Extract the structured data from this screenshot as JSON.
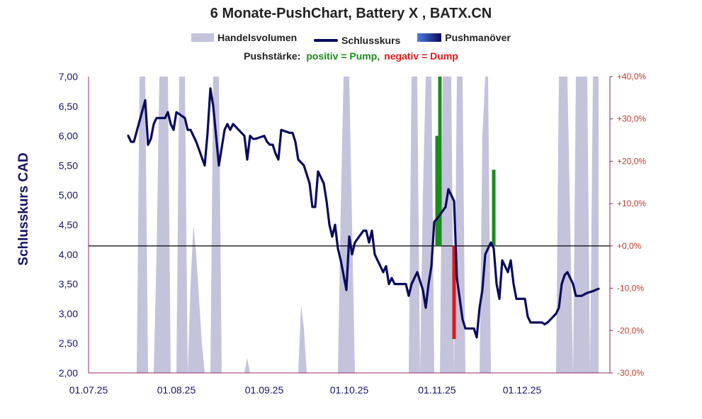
{
  "title": "6 Monate-PushChart, Battery X , BATX.CN",
  "legend": {
    "volume": "Handelsvolumen",
    "close": "Schlusskurs",
    "push": "Pushmanöver"
  },
  "push_legend": {
    "label": "Pushstärke:",
    "positive": "positiv = Pump,",
    "negative": "negativ = Dump"
  },
  "colors": {
    "volume": "#c3c3dc",
    "close": "#0a0a5e",
    "pump": "#1b8c1b",
    "dump": "#e01818",
    "baseline": "#000000",
    "left_axis_text": "#141466",
    "right_axis_text": "#c0392b",
    "right_axis_line": "#8b2252"
  },
  "chart_data": {
    "type": "line",
    "title": "6 Monate-PushChart, Battery X , BATX.CN",
    "ylabel": "Schlusskurs CAD",
    "xlabel": "",
    "x_ticks": [
      "01.07.25",
      "01.08.25",
      "01.09.25",
      "01.10.25",
      "01.11.25",
      "01.12.25"
    ],
    "ylim": [
      2.0,
      7.0
    ],
    "y_ticks": [
      "2,00",
      "2,50",
      "3,00",
      "3,50",
      "4,00",
      "4,50",
      "5,00",
      "5,50",
      "6,00",
      "6,50",
      "7,00"
    ],
    "y2lim": [
      -30,
      40
    ],
    "y2_ticks": [
      "-30,0%",
      "-20,0%",
      "-10,0%",
      "+0,0%",
      "+10,0%",
      "+20,0%",
      "+30,0%",
      "+40,0%"
    ],
    "baseline_pct": 0,
    "series": [
      {
        "name": "Schlusskurs",
        "points": [
          [
            "2025-07-15",
            6.0
          ],
          [
            "2025-07-16",
            5.9
          ],
          [
            "2025-07-17",
            5.9
          ],
          [
            "2025-07-21",
            6.6
          ],
          [
            "2025-07-22",
            5.85
          ],
          [
            "2025-07-23",
            5.95
          ],
          [
            "2025-07-24",
            6.2
          ],
          [
            "2025-07-25",
            6.3
          ],
          [
            "2025-07-28",
            6.3
          ],
          [
            "2025-07-29",
            6.4
          ],
          [
            "2025-07-30",
            6.2
          ],
          [
            "2025-07-31",
            6.1
          ],
          [
            "2025-08-01",
            6.4
          ],
          [
            "2025-08-04",
            6.3
          ],
          [
            "2025-08-05",
            6.1
          ],
          [
            "2025-08-06",
            6.1
          ],
          [
            "2025-08-08",
            5.9
          ],
          [
            "2025-08-11",
            5.5
          ],
          [
            "2025-08-12",
            6.05
          ],
          [
            "2025-08-13",
            6.8
          ],
          [
            "2025-08-14",
            6.5
          ],
          [
            "2025-08-15",
            6.0
          ],
          [
            "2025-08-16",
            5.5
          ],
          [
            "2025-08-18",
            6.1
          ],
          [
            "2025-08-19",
            6.2
          ],
          [
            "2025-08-20",
            6.1
          ],
          [
            "2025-08-21",
            6.2
          ],
          [
            "2025-08-25",
            6.0
          ],
          [
            "2025-08-26",
            5.6
          ],
          [
            "2025-08-27",
            6.0
          ],
          [
            "2025-08-28",
            5.95
          ],
          [
            "2025-08-29",
            5.95
          ],
          [
            "2025-09-01",
            6.0
          ],
          [
            "2025-09-02",
            5.9
          ],
          [
            "2025-09-03",
            5.85
          ],
          [
            "2025-09-04",
            5.85
          ],
          [
            "2025-09-05",
            5.7
          ],
          [
            "2025-09-06",
            5.6
          ],
          [
            "2025-09-07",
            6.1
          ],
          [
            "2025-09-10",
            6.05
          ],
          [
            "2025-09-11",
            6.05
          ],
          [
            "2025-09-12",
            5.9
          ],
          [
            "2025-09-13",
            5.6
          ],
          [
            "2025-09-15",
            5.5
          ],
          [
            "2025-09-17",
            5.2
          ],
          [
            "2025-09-18",
            4.8
          ],
          [
            "2025-09-19",
            4.8
          ],
          [
            "2025-09-20",
            5.4
          ],
          [
            "2025-09-22",
            5.2
          ],
          [
            "2025-09-23",
            4.9
          ],
          [
            "2025-09-24",
            4.5
          ],
          [
            "2025-09-25",
            4.3
          ],
          [
            "2025-09-26",
            4.5
          ],
          [
            "2025-09-27",
            4.1
          ],
          [
            "2025-09-28",
            3.9
          ],
          [
            "2025-09-30",
            3.4
          ],
          [
            "2025-10-01",
            4.3
          ],
          [
            "2025-10-02",
            4.0
          ],
          [
            "2025-10-03",
            4.2
          ],
          [
            "2025-10-06",
            4.4
          ],
          [
            "2025-10-07",
            4.4
          ],
          [
            "2025-10-08",
            4.2
          ],
          [
            "2025-10-09",
            4.4
          ],
          [
            "2025-10-10",
            4.0
          ],
          [
            "2025-10-13",
            3.7
          ],
          [
            "2025-10-14",
            3.8
          ],
          [
            "2025-10-15",
            3.5
          ],
          [
            "2025-10-16",
            3.6
          ],
          [
            "2025-10-17",
            3.5
          ],
          [
            "2025-10-21",
            3.5
          ],
          [
            "2025-10-22",
            3.3
          ],
          [
            "2025-10-23",
            3.5
          ],
          [
            "2025-10-24",
            3.6
          ],
          [
            "2025-10-25",
            3.7
          ],
          [
            "2025-10-27",
            3.4
          ],
          [
            "2025-10-28",
            3.1
          ],
          [
            "2025-10-29",
            3.5
          ],
          [
            "2025-10-30",
            3.8
          ],
          [
            "2025-10-31",
            4.55
          ],
          [
            "2025-11-01",
            4.6
          ],
          [
            "2025-11-04",
            4.8
          ],
          [
            "2025-11-05",
            5.1
          ],
          [
            "2025-11-06",
            5.0
          ],
          [
            "2025-11-07",
            4.9
          ],
          [
            "2025-11-08",
            3.6
          ],
          [
            "2025-11-10",
            2.9
          ],
          [
            "2025-11-11",
            2.75
          ],
          [
            "2025-11-12",
            2.75
          ],
          [
            "2025-11-14",
            2.75
          ],
          [
            "2025-11-15",
            2.6
          ],
          [
            "2025-11-16",
            3.1
          ],
          [
            "2025-11-17",
            3.4
          ],
          [
            "2025-11-18",
            4.0
          ],
          [
            "2025-11-20",
            4.2
          ],
          [
            "2025-11-21",
            4.1
          ],
          [
            "2025-11-22",
            3.5
          ],
          [
            "2025-11-23",
            3.25
          ],
          [
            "2025-11-24",
            3.9
          ],
          [
            "2025-11-26",
            3.7
          ],
          [
            "2025-11-27",
            3.9
          ],
          [
            "2025-11-28",
            3.5
          ],
          [
            "2025-11-29",
            3.25
          ],
          [
            "2025-12-01",
            3.25
          ],
          [
            "2025-12-02",
            3.25
          ],
          [
            "2025-12-03",
            2.95
          ],
          [
            "2025-12-04",
            2.85
          ],
          [
            "2025-12-05",
            2.85
          ],
          [
            "2025-12-08",
            2.85
          ],
          [
            "2025-12-09",
            2.82
          ],
          [
            "2025-12-10",
            2.85
          ],
          [
            "2025-12-11",
            2.9
          ],
          [
            "2025-12-12",
            2.95
          ],
          [
            "2025-12-13",
            3.0
          ],
          [
            "2025-12-14",
            3.1
          ],
          [
            "2025-12-15",
            3.5
          ],
          [
            "2025-12-16",
            3.65
          ],
          [
            "2025-12-17",
            3.7
          ],
          [
            "2025-12-19",
            3.5
          ],
          [
            "2025-12-20",
            3.3
          ],
          [
            "2025-12-22",
            3.3
          ],
          [
            "2025-12-24",
            3.35
          ],
          [
            "2025-12-26",
            3.38
          ],
          [
            "2025-12-28",
            3.42
          ]
        ]
      }
    ],
    "volume_pct_of_axis": [
      [
        "2025-07-18",
        0
      ],
      [
        "2025-07-19",
        100
      ],
      [
        "2025-07-21",
        100
      ],
      [
        "2025-07-22",
        0
      ],
      [
        "2025-07-24",
        0
      ],
      [
        "2025-07-25",
        40
      ],
      [
        "2025-07-26",
        100
      ],
      [
        "2025-07-29",
        100
      ],
      [
        "2025-07-30",
        0
      ],
      [
        "2025-08-01",
        0
      ],
      [
        "2025-08-02",
        100
      ],
      [
        "2025-08-04",
        100
      ],
      [
        "2025-08-05",
        0
      ],
      [
        "2025-08-06",
        30
      ],
      [
        "2025-08-07",
        50
      ],
      [
        "2025-08-08",
        40
      ],
      [
        "2025-08-10",
        10
      ],
      [
        "2025-08-11",
        0
      ],
      [
        "2025-08-13",
        0
      ],
      [
        "2025-08-14",
        100
      ],
      [
        "2025-08-16",
        100
      ],
      [
        "2025-08-17",
        0
      ],
      [
        "2025-08-25",
        0
      ],
      [
        "2025-08-26",
        5
      ],
      [
        "2025-08-27",
        0
      ],
      [
        "2025-09-13",
        0
      ],
      [
        "2025-09-14",
        23
      ],
      [
        "2025-09-15",
        15
      ],
      [
        "2025-09-16",
        0
      ],
      [
        "2025-09-27",
        0
      ],
      [
        "2025-09-28",
        55
      ],
      [
        "2025-09-29",
        100
      ],
      [
        "2025-10-01",
        100
      ],
      [
        "2025-10-03",
        0
      ],
      [
        "2025-10-22",
        0
      ],
      [
        "2025-10-23",
        100
      ],
      [
        "2025-10-25",
        100
      ],
      [
        "2025-10-26",
        0
      ],
      [
        "2025-10-27",
        60
      ],
      [
        "2025-10-28",
        100
      ],
      [
        "2025-10-30",
        100
      ],
      [
        "2025-10-31",
        0
      ],
      [
        "2025-11-02",
        0
      ],
      [
        "2025-11-03",
        100
      ],
      [
        "2025-11-06",
        100
      ],
      [
        "2025-11-07",
        0
      ],
      [
        "2025-11-08",
        100
      ],
      [
        "2025-11-10",
        100
      ],
      [
        "2025-11-11",
        0
      ],
      [
        "2025-11-16",
        0
      ],
      [
        "2025-11-17",
        80
      ],
      [
        "2025-11-18",
        100
      ],
      [
        "2025-11-19",
        100
      ],
      [
        "2025-11-20",
        0
      ],
      [
        "2025-12-13",
        0
      ],
      [
        "2025-12-14",
        100
      ],
      [
        "2025-12-17",
        100
      ],
      [
        "2025-12-19",
        0
      ],
      [
        "2025-12-20",
        100
      ],
      [
        "2025-12-24",
        100
      ],
      [
        "2025-12-25",
        0
      ],
      [
        "2025-12-26",
        100
      ],
      [
        "2025-12-28",
        100
      ]
    ],
    "push_bars_pct": [
      {
        "date": "2025-11-01",
        "pct": 26,
        "kind": "pump"
      },
      {
        "date": "2025-11-02",
        "pct": 40,
        "kind": "pump"
      },
      {
        "date": "2025-11-07",
        "pct": -22,
        "kind": "dump"
      },
      {
        "date": "2025-11-21",
        "pct": 18,
        "kind": "pump"
      }
    ]
  }
}
